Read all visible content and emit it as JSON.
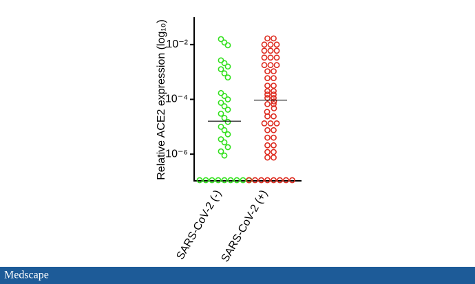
{
  "chart_data": {
    "type": "dot-strip",
    "y_label": "Relative ACE2 expression (log₁₀)",
    "categories": [
      "SARS-CoV-2 (-)",
      "SARS-CoV-2 (+)"
    ],
    "log_scale": true,
    "ylim": [
      1e-07,
      0.1
    ],
    "yticks": [
      {
        "value": 0.01,
        "label": "10⁻²"
      },
      {
        "value": 0.0001,
        "label": "10⁻⁴"
      },
      {
        "value": 1e-06,
        "label": "10⁻⁶"
      }
    ],
    "series": [
      {
        "color": "#33e01e",
        "median": 1.6e-05,
        "values": [
          0.0158,
          0.0119,
          0.00944,
          0.00266,
          0.00211,
          0.00158,
          0.00126,
          0.00089,
          0.00063,
          0.00017,
          0.000133,
          0.0001,
          7.5e-05,
          5.6e-05,
          4.2e-05,
          3e-05,
          2.1e-05,
          1.5e-05,
          1e-05,
          7.5e-06,
          5.3e-06,
          3.5e-06,
          2.7e-06,
          1.8e-06,
          1.26e-06,
          8.9e-07,
          1e-07,
          1e-07,
          1e-07,
          1e-07,
          1e-07,
          1e-07,
          1e-07,
          1e-07,
          1e-07
        ]
      },
      {
        "color": "#dd2a1e",
        "median": 9.4e-05,
        "values": [
          0.0168,
          0.0168,
          0.01,
          0.01,
          0.01,
          0.00596,
          0.00596,
          0.00596,
          0.00335,
          0.00335,
          0.00335,
          0.00178,
          0.00178,
          0.00178,
          0.00106,
          0.00106,
          0.000596,
          0.000596,
          0.000316,
          0.000316,
          0.0002,
          0.0002,
          0.00015,
          0.00015,
          0.000112,
          0.000112,
          8.4e-05,
          6.7e-05,
          6.7e-05,
          4.7e-05,
          3.5e-05,
          2.4e-05,
          2.4e-05,
          1.33e-05,
          1.33e-05,
          1.33e-05,
          7.5e-06,
          7.5e-06,
          4e-06,
          4e-06,
          2.1e-06,
          2.1e-06,
          1.2e-06,
          1.2e-06,
          7.5e-07,
          7.5e-07,
          1e-07,
          1e-07,
          1e-07,
          1e-07,
          1e-07,
          1e-07,
          1e-07,
          1e-07
        ]
      }
    ]
  },
  "footer": "Medscape"
}
